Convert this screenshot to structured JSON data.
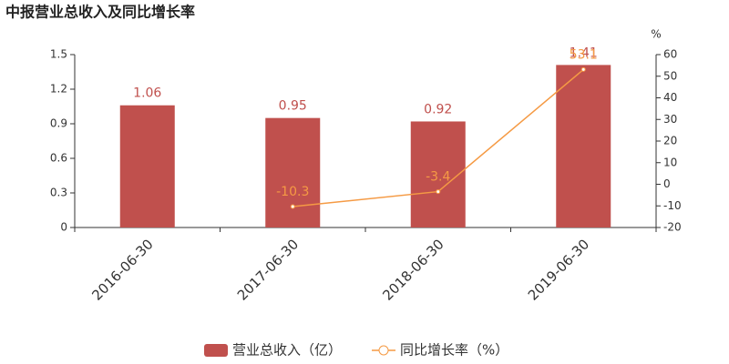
{
  "chart_data": {
    "type": "bar-line",
    "title": "中报营业总收入及同比增长率",
    "y2label": "%",
    "categories": [
      "2016-06-30",
      "2017-06-30",
      "2018-06-30",
      "2019-06-30"
    ],
    "series": [
      {
        "name": "营业总收入（亿）",
        "type": "bar",
        "color": "#c0504d",
        "values": [
          1.06,
          0.95,
          0.92,
          1.41
        ]
      },
      {
        "name": "同比增长率（%）",
        "type": "line",
        "axis": "y2",
        "color": "#f59a44",
        "values": [
          null,
          -10.3,
          -3.4,
          53.1
        ]
      }
    ],
    "ylim": [
      0,
      1.5
    ],
    "yticks": [
      0,
      0.3,
      0.6,
      0.9,
      1.2,
      1.5
    ],
    "y2lim": [
      -20,
      60
    ],
    "y2ticks": [
      -20,
      -10,
      0,
      10,
      20,
      30,
      40,
      50,
      60
    ],
    "grid": false
  }
}
